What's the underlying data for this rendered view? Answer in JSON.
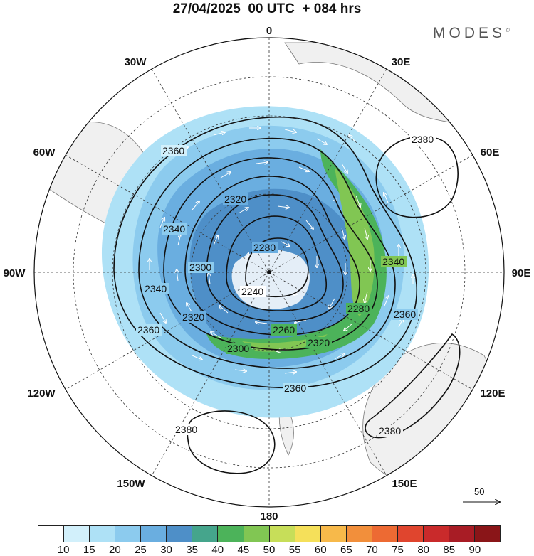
{
  "title": "27/04/2025  00 UTC  + 084 hrs",
  "brand": "MODES",
  "brand_mark": "©",
  "longitude_labels": {
    "lon_0": "0",
    "lon_30e": "30E",
    "lon_60e": "60E",
    "lon_90e": "90E",
    "lon_120e": "120E",
    "lon_150e": "150E",
    "lon_180": "180",
    "lon_150w": "150W",
    "lon_120w": "120W",
    "lon_90w": "90W",
    "lon_60w": "60W",
    "lon_30w": "30W"
  },
  "contour_labels": {
    "c1": "2360",
    "c2": "2320",
    "c3": "2340",
    "c4": "2380",
    "c5": "2280",
    "c6": "2300",
    "c7": "2240",
    "c8": "2340",
    "c9": "2320",
    "c10": "2360",
    "c11": "2260",
    "c12": "2300",
    "c13": "2280",
    "c14": "2320",
    "c15": "2340",
    "c16": "2360",
    "c17": "2360",
    "c18": "2380",
    "c19": "2380"
  },
  "vector_reference": {
    "value": "50"
  },
  "colorbar": {
    "colors": [
      "#ffffff",
      "#d2f0fb",
      "#aee1f6",
      "#8ccbee",
      "#6aaee0",
      "#4e8fc8",
      "#45a58c",
      "#4cb35a",
      "#81c653",
      "#c7de59",
      "#f5e05a",
      "#f7b94a",
      "#f28f3b",
      "#ed6a33",
      "#e0452e",
      "#c92a2b",
      "#a81c25",
      "#8a1518"
    ],
    "ticks": [
      "10",
      "15",
      "20",
      "25",
      "30",
      "35",
      "40",
      "45",
      "50",
      "55",
      "60",
      "65",
      "70",
      "75",
      "80",
      "85",
      "90"
    ]
  }
}
